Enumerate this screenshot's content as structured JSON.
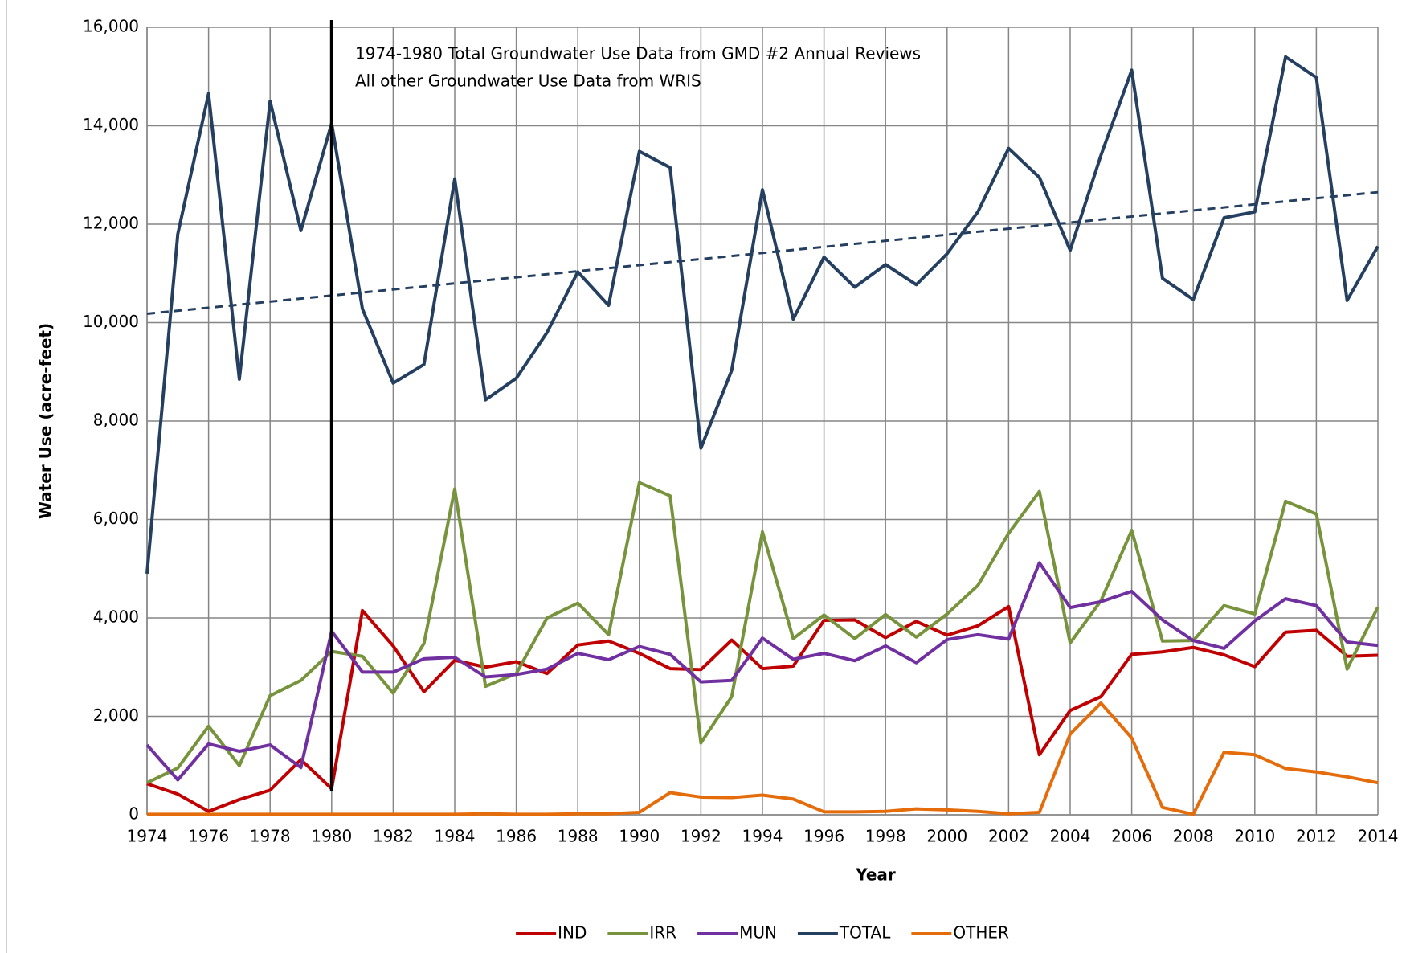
{
  "chart_data": {
    "type": "line",
    "x_label": "Year",
    "y_label": "Water Use (acre-feet)",
    "annotations": [
      "1974-1980 Total Groundwater Use Data from GMD #2 Annual Reviews",
      "All other Groundwater Use Data from WRIS"
    ],
    "x": [
      1974,
      1975,
      1976,
      1977,
      1978,
      1979,
      1980,
      1981,
      1982,
      1983,
      1984,
      1985,
      1986,
      1987,
      1988,
      1989,
      1990,
      1991,
      1992,
      1993,
      1994,
      1995,
      1996,
      1997,
      1998,
      1999,
      2000,
      2001,
      2002,
      2003,
      2004,
      2005,
      2006,
      2007,
      2008,
      2009,
      2010,
      2011,
      2012,
      2013,
      2014
    ],
    "series": [
      {
        "name": "IND",
        "color": "#c00000",
        "values": [
          630,
          420,
          70,
          310,
          500,
          1120,
          530,
          4150,
          3430,
          2500,
          3140,
          3000,
          3110,
          2870,
          3450,
          3530,
          3280,
          2970,
          2950,
          3550,
          2970,
          3020,
          3950,
          3960,
          3600,
          3930,
          3650,
          3840,
          4230,
          1220,
          2120,
          2400,
          3260,
          3310,
          3400,
          3250,
          3010,
          3710,
          3750,
          3220,
          3240
        ]
      },
      {
        "name": "IRR",
        "color": "#77933c",
        "values": [
          650,
          950,
          1800,
          1000,
          2420,
          2730,
          3320,
          3220,
          2470,
          3480,
          6620,
          2610,
          2870,
          4000,
          4300,
          3660,
          6750,
          6480,
          1460,
          2400,
          5750,
          3580,
          4060,
          3580,
          4070,
          3610,
          4080,
          4660,
          5720,
          6570,
          3490,
          4350,
          5780,
          3530,
          3540,
          4250,
          4080,
          6370,
          6110,
          2960,
          4220
        ]
      },
      {
        "name": "MUN",
        "color": "#7030a0",
        "values": [
          1420,
          710,
          1440,
          1290,
          1420,
          960,
          3730,
          2900,
          2900,
          3170,
          3200,
          2800,
          2850,
          2960,
          3280,
          3150,
          3420,
          3260,
          2700,
          2730,
          3590,
          3160,
          3280,
          3130,
          3430,
          3090,
          3560,
          3660,
          3570,
          5120,
          4210,
          4330,
          4540,
          3960,
          3540,
          3380,
          3940,
          4390,
          4250,
          3510,
          3440
        ]
      },
      {
        "name": "TOTAL",
        "color": "#243f60",
        "values": [
          4900,
          11800,
          14650,
          8850,
          14500,
          11870,
          14050,
          10280,
          8770,
          9150,
          12920,
          8430,
          8870,
          9800,
          11030,
          10350,
          13480,
          13150,
          7450,
          9030,
          12700,
          10070,
          11330,
          10720,
          11180,
          10770,
          11400,
          12250,
          13540,
          12950,
          11470,
          13400,
          15130,
          10900,
          10470,
          12130,
          12250,
          15400,
          14980,
          10450,
          11550
        ]
      },
      {
        "name": "OTHER",
        "color": "#e46c0a",
        "values": [
          10,
          10,
          10,
          10,
          10,
          10,
          10,
          10,
          10,
          10,
          10,
          20,
          10,
          10,
          20,
          20,
          50,
          450,
          360,
          350,
          400,
          320,
          60,
          60,
          70,
          120,
          100,
          70,
          20,
          50,
          1640,
          2270,
          1560,
          150,
          10,
          1270,
          1220,
          940,
          870,
          770,
          650
        ]
      }
    ],
    "trendline": {
      "x": [
        1974,
        2014
      ],
      "values": [
        10180,
        12650
      ],
      "color": "#243f60"
    },
    "divider_x": 1980,
    "xlim": [
      1974,
      2014
    ],
    "xticks": [
      1974,
      1976,
      1978,
      1980,
      1982,
      1984,
      1986,
      1988,
      1990,
      1992,
      1994,
      1996,
      1998,
      2000,
      2002,
      2004,
      2006,
      2008,
      2010,
      2012,
      2014
    ],
    "ylim": [
      0,
      16000
    ],
    "yticks": [
      0,
      {
        "value": 2000,
        "label": "2,000"
      },
      {
        "value": 4000,
        "label": "4,000"
      },
      {
        "value": 6000,
        "label": "6,000"
      },
      {
        "value": 8000,
        "label": "8,000"
      },
      {
        "value": 10000,
        "label": "10,000"
      },
      {
        "value": 12000,
        "label": "12,000"
      },
      {
        "value": 14000,
        "label": "14,000"
      },
      {
        "value": 16000,
        "label": "16,000"
      }
    ],
    "grid": true,
    "legend": "bottom"
  }
}
